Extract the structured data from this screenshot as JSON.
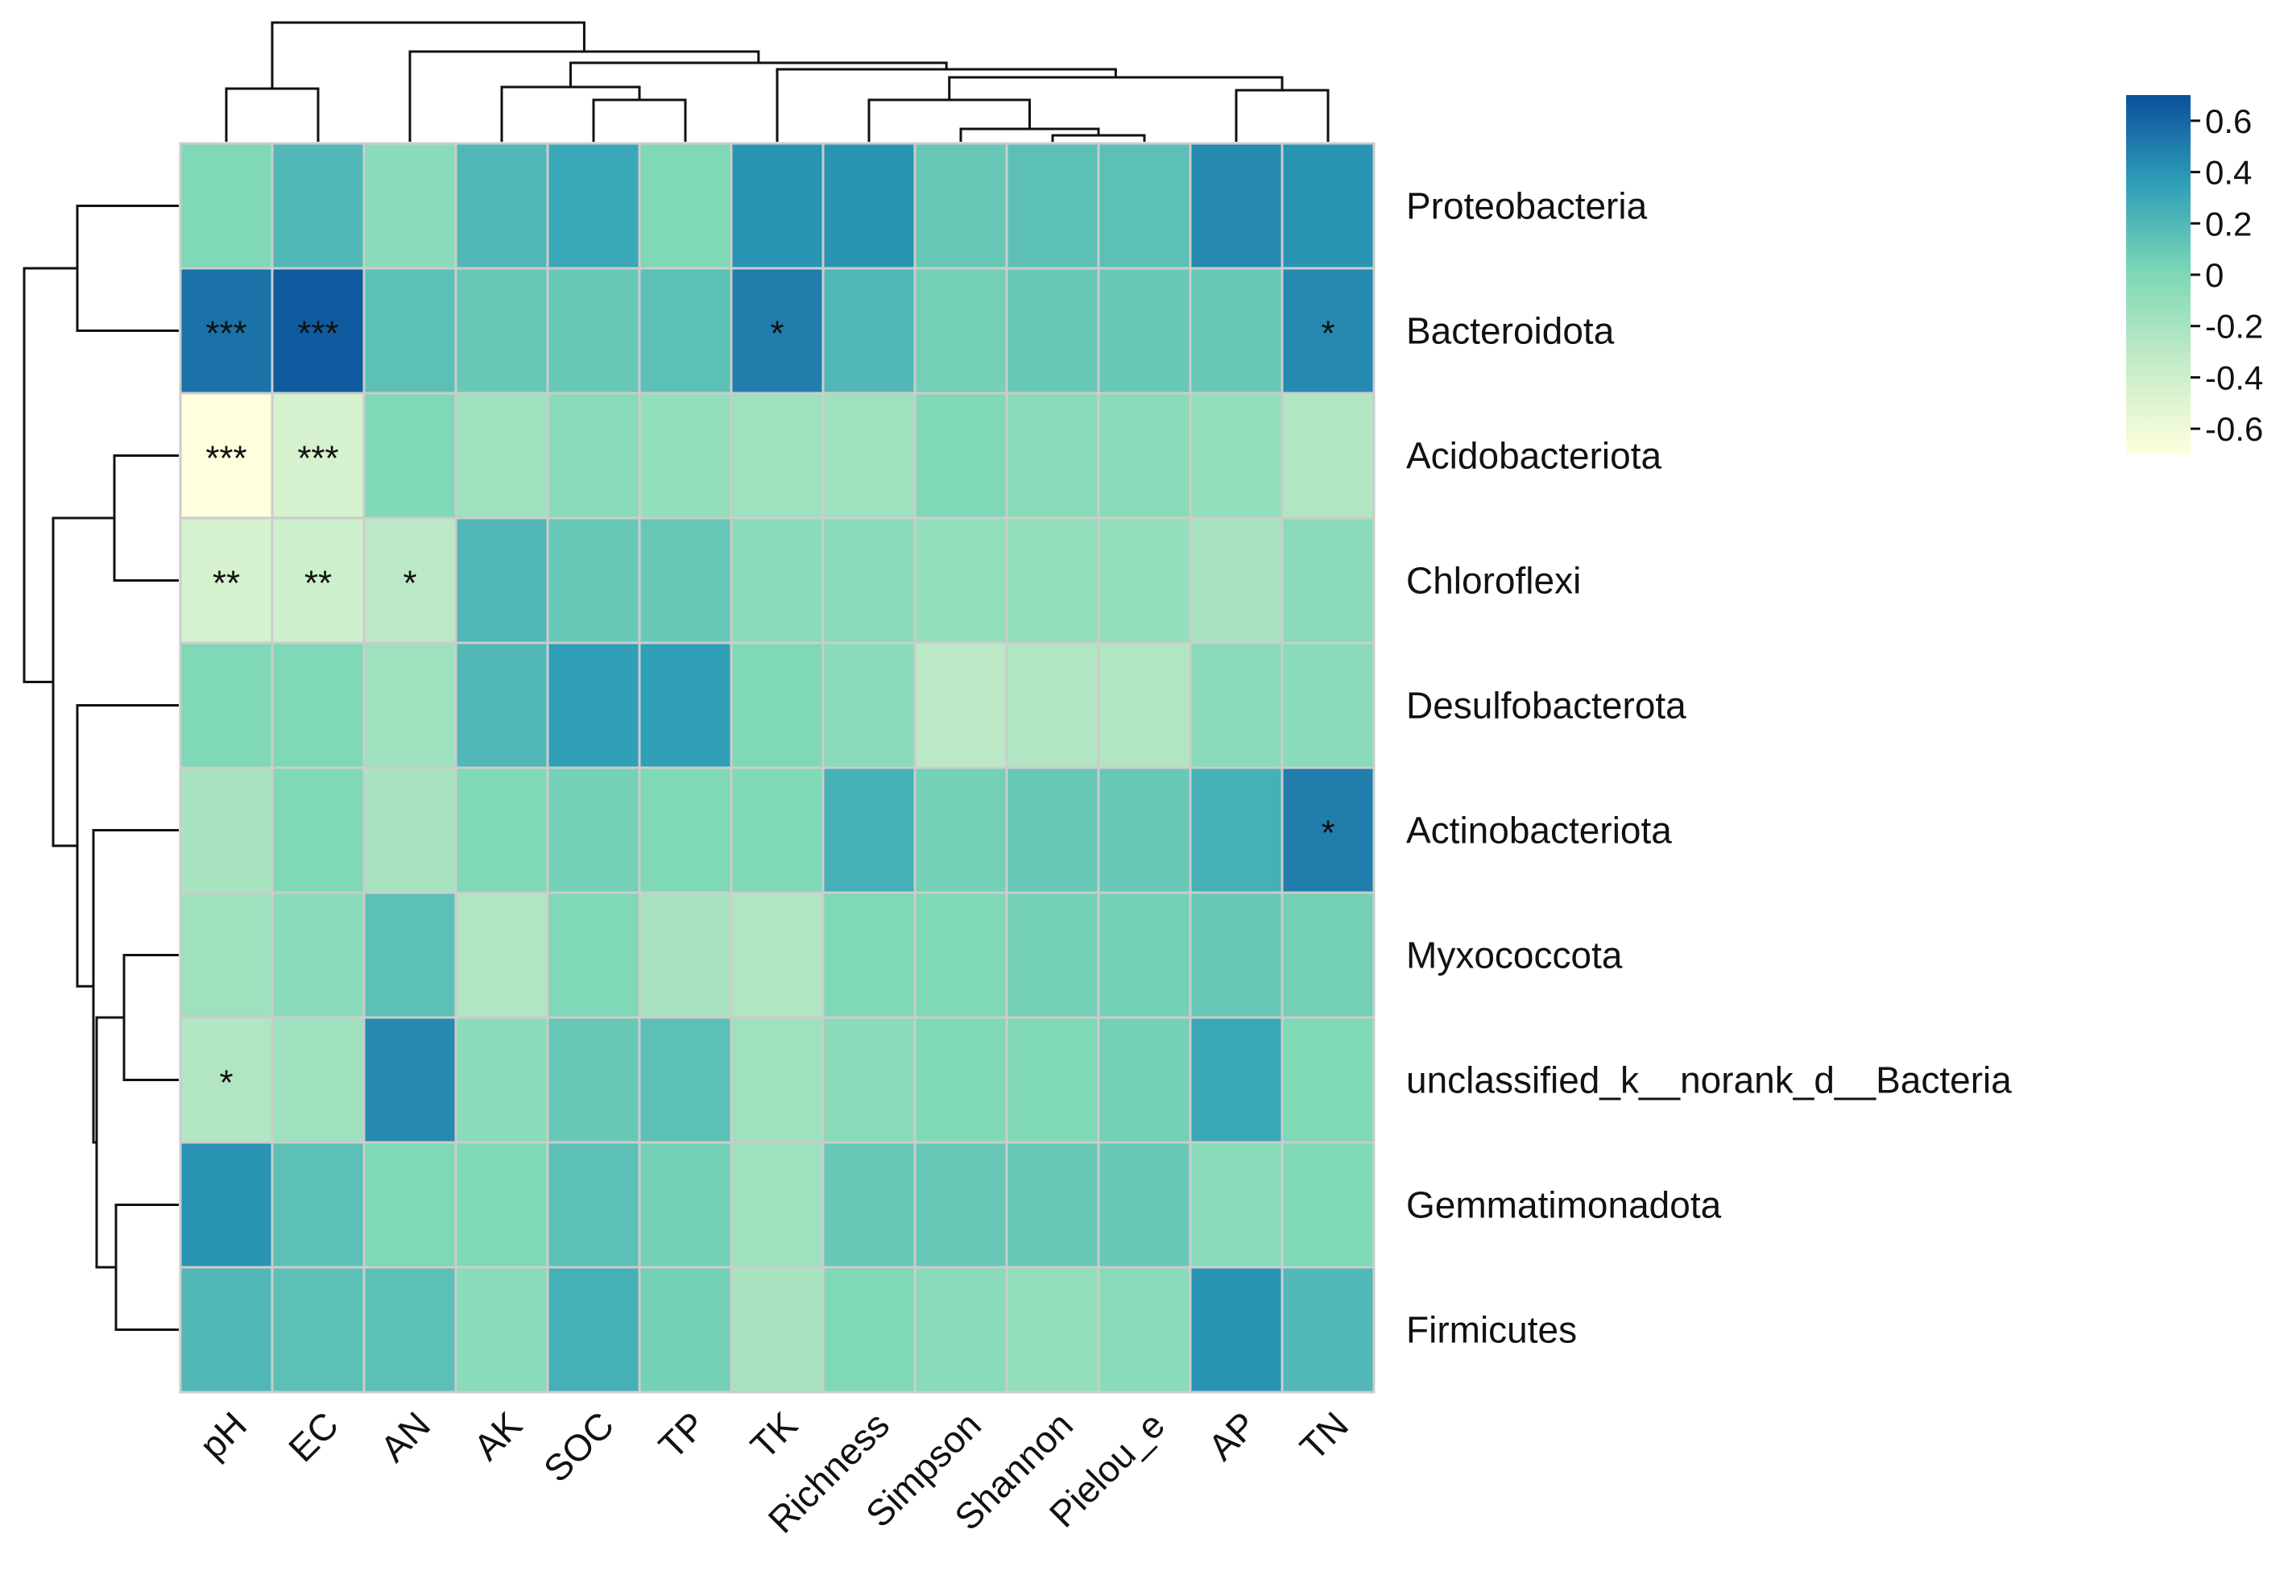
{
  "chart_data": {
    "type": "heatmap",
    "title": "",
    "rows": [
      "Proteobacteria",
      "Bacteroidota",
      "Acidobacteriota",
      "Chloroflexi",
      "Desulfobacterota",
      "Actinobacteriota",
      "Myxococcota",
      "unclassified_k__norank_d__Bacteria",
      "Gemmatimonadota",
      "Firmicutes"
    ],
    "columns": [
      "pH",
      "EC",
      "AN",
      "AK",
      "SOC",
      "TP",
      "TK",
      "Richness",
      "Simpson",
      "Shannon",
      "Pielou_e",
      "AP",
      "TN"
    ],
    "values": [
      [
        0.0,
        0.2,
        -0.05,
        0.2,
        0.3,
        0.0,
        0.4,
        0.4,
        0.1,
        0.15,
        0.15,
        0.45,
        0.4
      ],
      [
        0.55,
        0.65,
        0.15,
        0.1,
        0.1,
        0.15,
        0.5,
        0.2,
        0.05,
        0.1,
        0.1,
        0.1,
        0.45
      ],
      [
        -0.7,
        -0.45,
        0.0,
        -0.15,
        -0.05,
        -0.1,
        -0.15,
        -0.15,
        0.0,
        -0.05,
        -0.05,
        -0.1,
        -0.25
      ],
      [
        -0.45,
        -0.4,
        -0.3,
        0.2,
        0.1,
        0.1,
        -0.05,
        -0.05,
        -0.1,
        -0.1,
        -0.1,
        -0.2,
        -0.05
      ],
      [
        0.0,
        0.0,
        -0.15,
        0.2,
        0.35,
        0.35,
        0.0,
        -0.05,
        -0.3,
        -0.25,
        -0.25,
        -0.05,
        -0.05
      ],
      [
        -0.2,
        0.0,
        -0.2,
        0.0,
        0.05,
        0.0,
        0.0,
        0.25,
        0.05,
        0.1,
        0.1,
        0.25,
        0.5
      ],
      [
        -0.15,
        -0.05,
        0.15,
        -0.25,
        0.0,
        -0.2,
        -0.25,
        0.0,
        0.0,
        0.05,
        0.05,
        0.1,
        0.05
      ],
      [
        -0.25,
        -0.15,
        0.45,
        -0.05,
        0.1,
        0.15,
        -0.15,
        -0.05,
        0.0,
        0.0,
        0.05,
        0.3,
        0.0
      ],
      [
        0.4,
        0.15,
        0.0,
        0.0,
        0.15,
        0.05,
        -0.15,
        0.1,
        0.1,
        0.1,
        0.1,
        -0.05,
        0.0
      ],
      [
        0.2,
        0.15,
        0.15,
        -0.05,
        0.25,
        0.05,
        -0.2,
        0.0,
        -0.05,
        -0.1,
        -0.05,
        0.4,
        0.2
      ]
    ],
    "significance": [
      [
        "",
        "",
        "",
        "",
        "",
        "",
        "",
        "",
        "",
        "",
        "",
        "",
        ""
      ],
      [
        "***",
        "***",
        "",
        "",
        "",
        "",
        "*",
        "",
        "",
        "",
        "",
        "",
        "*"
      ],
      [
        "***",
        "***",
        "",
        "",
        "",
        "",
        "",
        "",
        "",
        "",
        "",
        "",
        ""
      ],
      [
        "**",
        "**",
        "*",
        "",
        "",
        "",
        "",
        "",
        "",
        "",
        "",
        "",
        ""
      ],
      [
        "",
        "",
        "",
        "",
        "",
        "",
        "",
        "",
        "",
        "",
        "",
        "",
        ""
      ],
      [
        "",
        "",
        "",
        "",
        "",
        "",
        "",
        "",
        "",
        "",
        "",
        "",
        "*"
      ],
      [
        "",
        "",
        "",
        "",
        "",
        "",
        "",
        "",
        "",
        "",
        "",
        "",
        ""
      ],
      [
        "*",
        "",
        "",
        "",
        "",
        "",
        "",
        "",
        "",
        "",
        "",
        "",
        ""
      ],
      [
        "",
        "",
        "",
        "",
        "",
        "",
        "",
        "",
        "",
        "",
        "",
        "",
        ""
      ],
      [
        "",
        "",
        "",
        "",
        "",
        "",
        "",
        "",
        "",
        "",
        "",
        "",
        ""
      ]
    ],
    "colorbar": {
      "range": [
        -0.7,
        0.7
      ],
      "ticks": [
        0.6,
        0.4,
        0.2,
        0,
        -0.2,
        -0.4,
        -0.6
      ],
      "tick_labels": [
        "0.6",
        "0.4",
        "0.2",
        "0",
        "-0.2",
        "-0.4",
        "-0.6"
      ],
      "placement": "top-right"
    },
    "colors": {
      "low": "#ffffdd",
      "mid_low": "#c6ecc8",
      "mid": "#7fd8b6",
      "mid_high": "#2fa0b8",
      "high": "#0b4f9c",
      "grid": "#cccccc",
      "line": "#111111"
    },
    "row_dendrogram": "left",
    "column_dendrogram": "top"
  }
}
